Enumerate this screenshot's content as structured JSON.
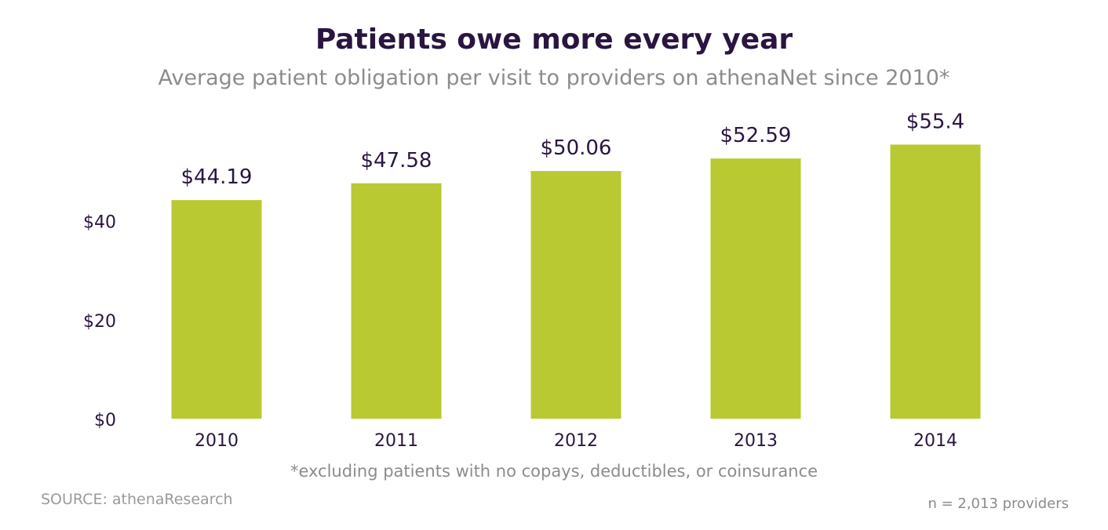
{
  "chart_data": {
    "type": "bar",
    "title": "Patients owe more every year",
    "subtitle": "Average patient obligation per visit to providers on athenaNet since 2010*",
    "categories": [
      "2010",
      "2011",
      "2012",
      "2013",
      "2014"
    ],
    "values": [
      44.19,
      47.58,
      50.06,
      52.59,
      55.4
    ],
    "data_labels": [
      "$44.19",
      "$47.58",
      "$50.06",
      "$52.59",
      "$55.4"
    ],
    "y_ticks": [
      0,
      20,
      40
    ],
    "y_tick_labels": [
      "$0",
      "$20",
      "$40"
    ],
    "ylim": [
      0,
      60
    ],
    "xlabel": "",
    "ylabel": "",
    "grid": false,
    "bar_color": "#b9c932",
    "footnote": "*excluding patients with no copays, deductibles, or coinsurance",
    "source": "SOURCE: athenaResearch",
    "sample_note": "n = 2,013 providers"
  }
}
